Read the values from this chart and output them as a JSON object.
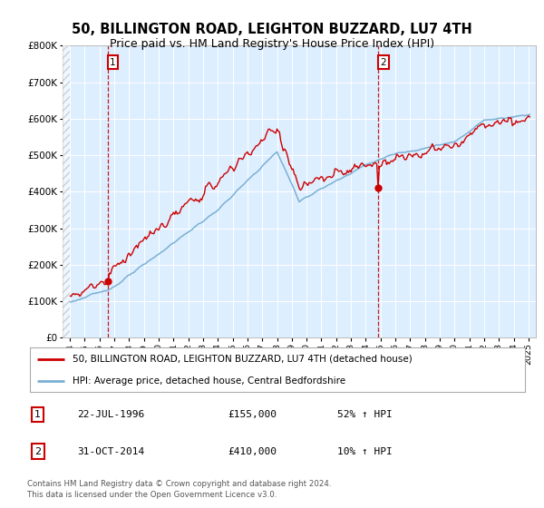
{
  "title": "50, BILLINGTON ROAD, LEIGHTON BUZZARD, LU7 4TH",
  "subtitle": "Price paid vs. HM Land Registry's House Price Index (HPI)",
  "legend_line1": "50, BILLINGTON ROAD, LEIGHTON BUZZARD, LU7 4TH (detached house)",
  "legend_line2": "HPI: Average price, detached house, Central Bedfordshire",
  "annotation1_date": "22-JUL-1996",
  "annotation1_price": "£155,000",
  "annotation1_hpi": "52% ↑ HPI",
  "annotation2_date": "31-OCT-2014",
  "annotation2_price": "£410,000",
  "annotation2_hpi": "10% ↑ HPI",
  "footnote": "Contains HM Land Registry data © Crown copyright and database right 2024.\nThis data is licensed under the Open Government Licence v3.0.",
  "sale1_year": 1996.55,
  "sale1_value": 155000,
  "sale2_year": 2014.83,
  "sale2_value": 410000,
  "ylim": [
    0,
    800000
  ],
  "xlim_start": 1993.5,
  "xlim_end": 2025.5,
  "red_color": "#cc0000",
  "blue_color": "#7ab0d4",
  "plot_bg": "#ddeeff",
  "title_fontsize": 10.5,
  "subtitle_fontsize": 9
}
